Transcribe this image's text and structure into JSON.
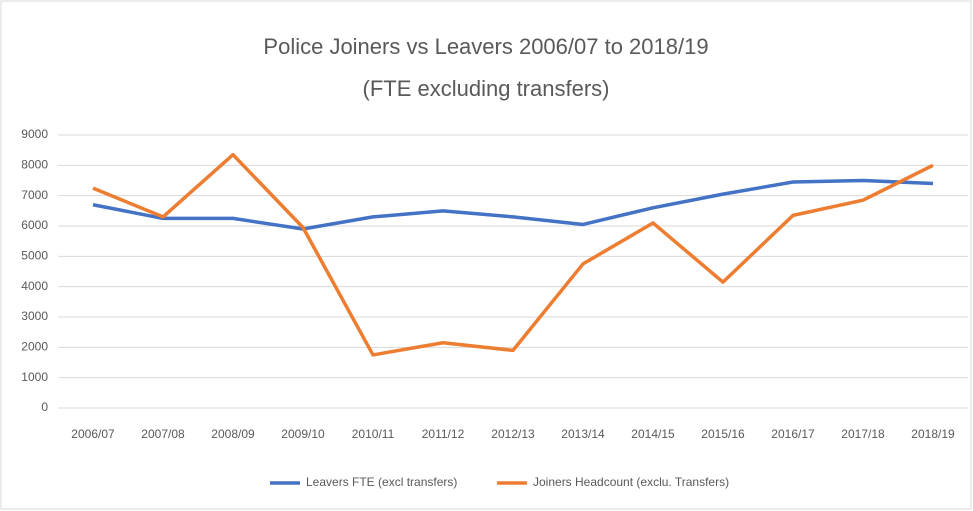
{
  "chart_data": {
    "type": "line",
    "title": "Police Joiners vs Leavers 2006/07 to 2018/19",
    "subtitle": "(FTE excluding transfers)",
    "categories": [
      "2006/07",
      "2007/08",
      "2008/09",
      "2009/10",
      "2010/11",
      "2011/12",
      "2012/13",
      "2013/14",
      "2014/15",
      "2015/16",
      "2016/17",
      "2017/18",
      "2018/19"
    ],
    "series": [
      {
        "name": "Leavers FTE (excl transfers)",
        "color": "#4472c4",
        "values": [
          6700,
          6250,
          6250,
          5900,
          6300,
          6500,
          6300,
          6050,
          6600,
          7050,
          7450,
          7500,
          7400
        ]
      },
      {
        "name": "Joiners Headcount (exclu. Transfers)",
        "color": "#ed7d31",
        "values": [
          7250,
          6300,
          8350,
          5950,
          1750,
          2150,
          1900,
          4750,
          6100,
          4150,
          6350,
          6850,
          8000
        ]
      }
    ],
    "ylim": [
      0,
      9000
    ],
    "yticks": [
      0,
      1000,
      2000,
      3000,
      4000,
      5000,
      6000,
      7000,
      8000,
      9000
    ],
    "grid": true,
    "legend": "bottom"
  }
}
